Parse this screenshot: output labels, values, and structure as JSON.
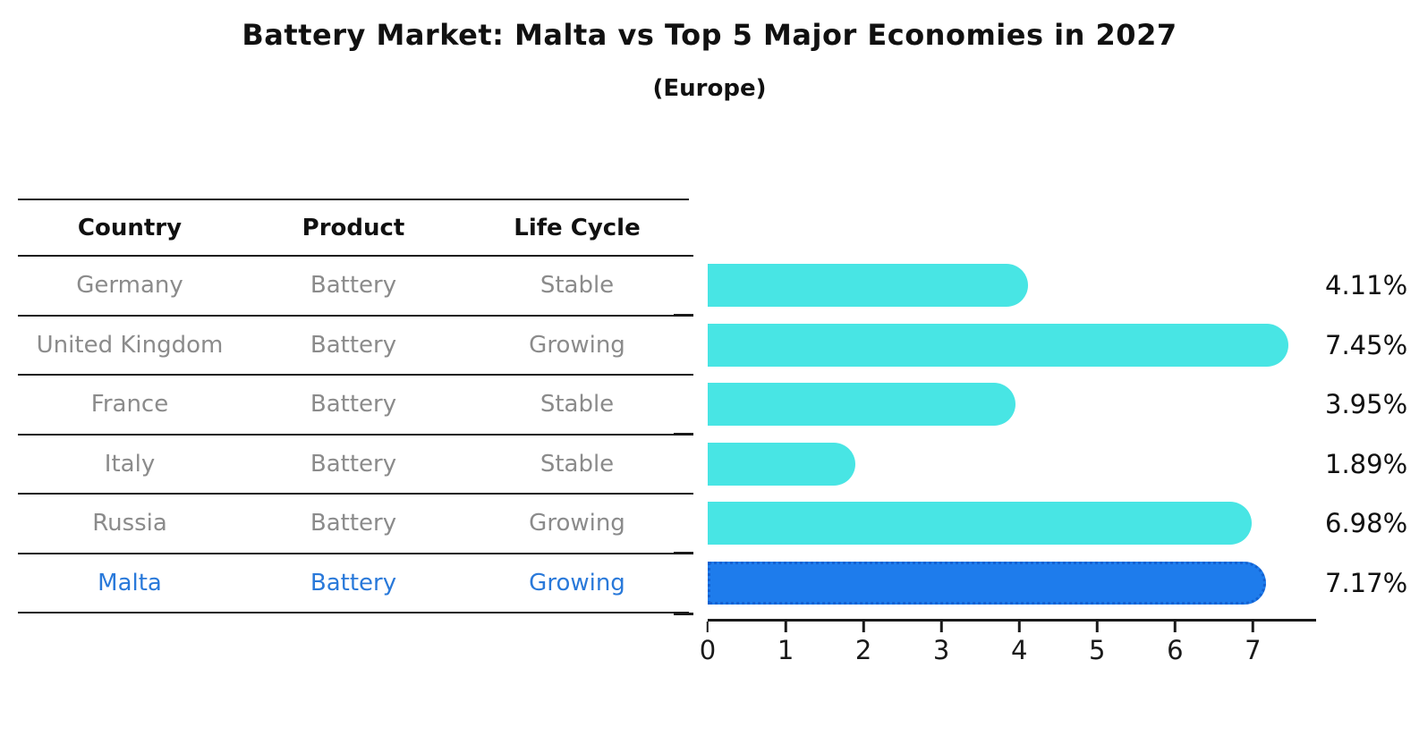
{
  "title": "Battery Market: Malta vs Top 5 Major Economies in 2027",
  "subtitle": "(Europe)",
  "table": {
    "headers": [
      "Country",
      "Product",
      "Life Cycle"
    ],
    "rows": [
      {
        "country": "Germany",
        "product": "Battery",
        "life_cycle": "Stable",
        "highlighted": false
      },
      {
        "country": "United Kingdom",
        "product": "Battery",
        "life_cycle": "Growing",
        "highlighted": false
      },
      {
        "country": "France",
        "product": "Battery",
        "life_cycle": "Stable",
        "highlighted": false
      },
      {
        "country": "Italy",
        "product": "Battery",
        "life_cycle": "Stable",
        "highlighted": false
      },
      {
        "country": "Russia",
        "product": "Battery",
        "life_cycle": "Growing",
        "highlighted": false
      },
      {
        "country": "Malta",
        "product": "Battery",
        "life_cycle": "Growing",
        "highlighted": true
      }
    ]
  },
  "chart_data": {
    "type": "bar",
    "orientation": "horizontal",
    "title": "Battery Market: Malta vs Top 5 Major Economies in 2027",
    "subtitle": "(Europe)",
    "categories": [
      "Germany",
      "United Kingdom",
      "France",
      "Italy",
      "Russia",
      "Malta"
    ],
    "values": [
      4.11,
      7.45,
      3.95,
      1.89,
      6.98,
      7.17
    ],
    "value_labels": [
      "4.11%",
      "7.45%",
      "3.95%",
      "1.89%",
      "6.98%",
      "7.17%"
    ],
    "unit": "percent",
    "xticks": [
      0,
      1,
      2,
      3,
      4,
      5,
      6,
      7
    ],
    "xlim": [
      0,
      7.8
    ],
    "highlight_index": 5,
    "grid": false,
    "legend": null,
    "value_label_position": "right-of-plot"
  },
  "colors": {
    "bar": "#48e5e4",
    "highlight_bar": "#1e7cec",
    "highlight_border": "#1261d1",
    "row_text": "#8b8b8b",
    "highlight_text": "#2979da",
    "header_text": "#111111",
    "axis": "#1a1a1a"
  }
}
